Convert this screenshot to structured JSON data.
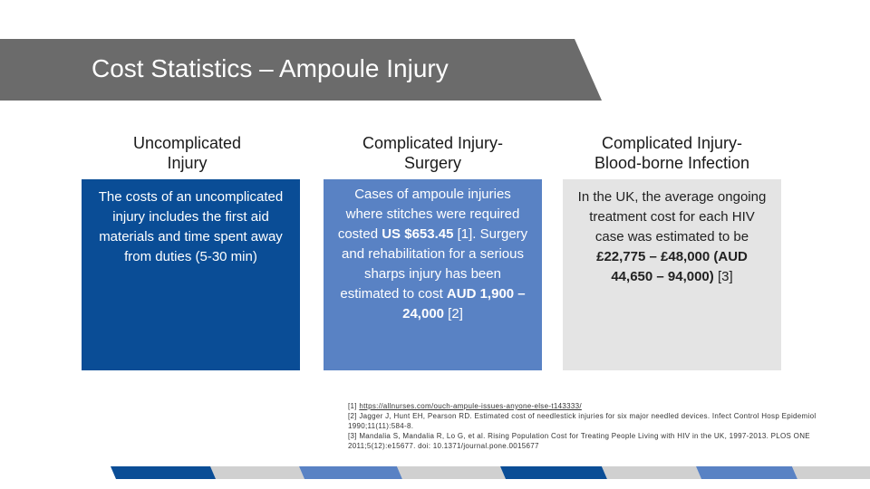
{
  "title": "Cost Statistics – Ampoule Injury",
  "columns": [
    {
      "heading_line1": "Uncomplicated",
      "heading_line2": "Injury",
      "body": "The costs of an uncomplicated injury includes the first aid materials and time spent away from duties (5-30 min)"
    },
    {
      "heading_line1": "Complicated Injury-",
      "heading_line2": "Surgery",
      "body_part1": "Cases of ampoule injuries where stitches were required costed ",
      "body_bold1": "US $653.45",
      "body_part2": " [1]. Surgery and rehabilitation for a serious sharps injury has been estimated to cost ",
      "body_bold2": "AUD 1,900 – 24,000",
      "body_part3": " [2]"
    },
    {
      "heading_line1": "Complicated Injury-",
      "heading_line2": "Blood-borne Infection",
      "body_part1": "In the UK, the average ongoing treatment cost for each HIV case was estimated to be ",
      "body_bold1": "£22,775 – £48,000 (AUD 44,650 – 94,000)",
      "body_part2": " [3]"
    }
  ],
  "references": {
    "ref1_prefix": "[1] ",
    "ref1_link": "https://allnurses.com/ouch-ampule-issues-anyone-else-t143333/",
    "ref2": "[2] Jagger J, Hunt EH, Pearson RD. Estimated cost of needlestick injuries for six major needled devices. Infect Control Hosp Epidemiol 1990;11(11):584-8.",
    "ref3": "[3] Mandalia S, Mandalia R, Lo G, et al. Rising Population Cost for Treating People Living with HIV in the UK, 1997-2013. PLOS ONE 2011;5(12):e15677. doi: 10.1371/journal.pone.0015677"
  },
  "colors": {
    "banner": "#6b6b6b",
    "dark_blue": "#0a4d96",
    "mid_blue": "#5982c4",
    "light_gray": "#e4e4e4",
    "stripe_gray": "#d0d0d0"
  }
}
